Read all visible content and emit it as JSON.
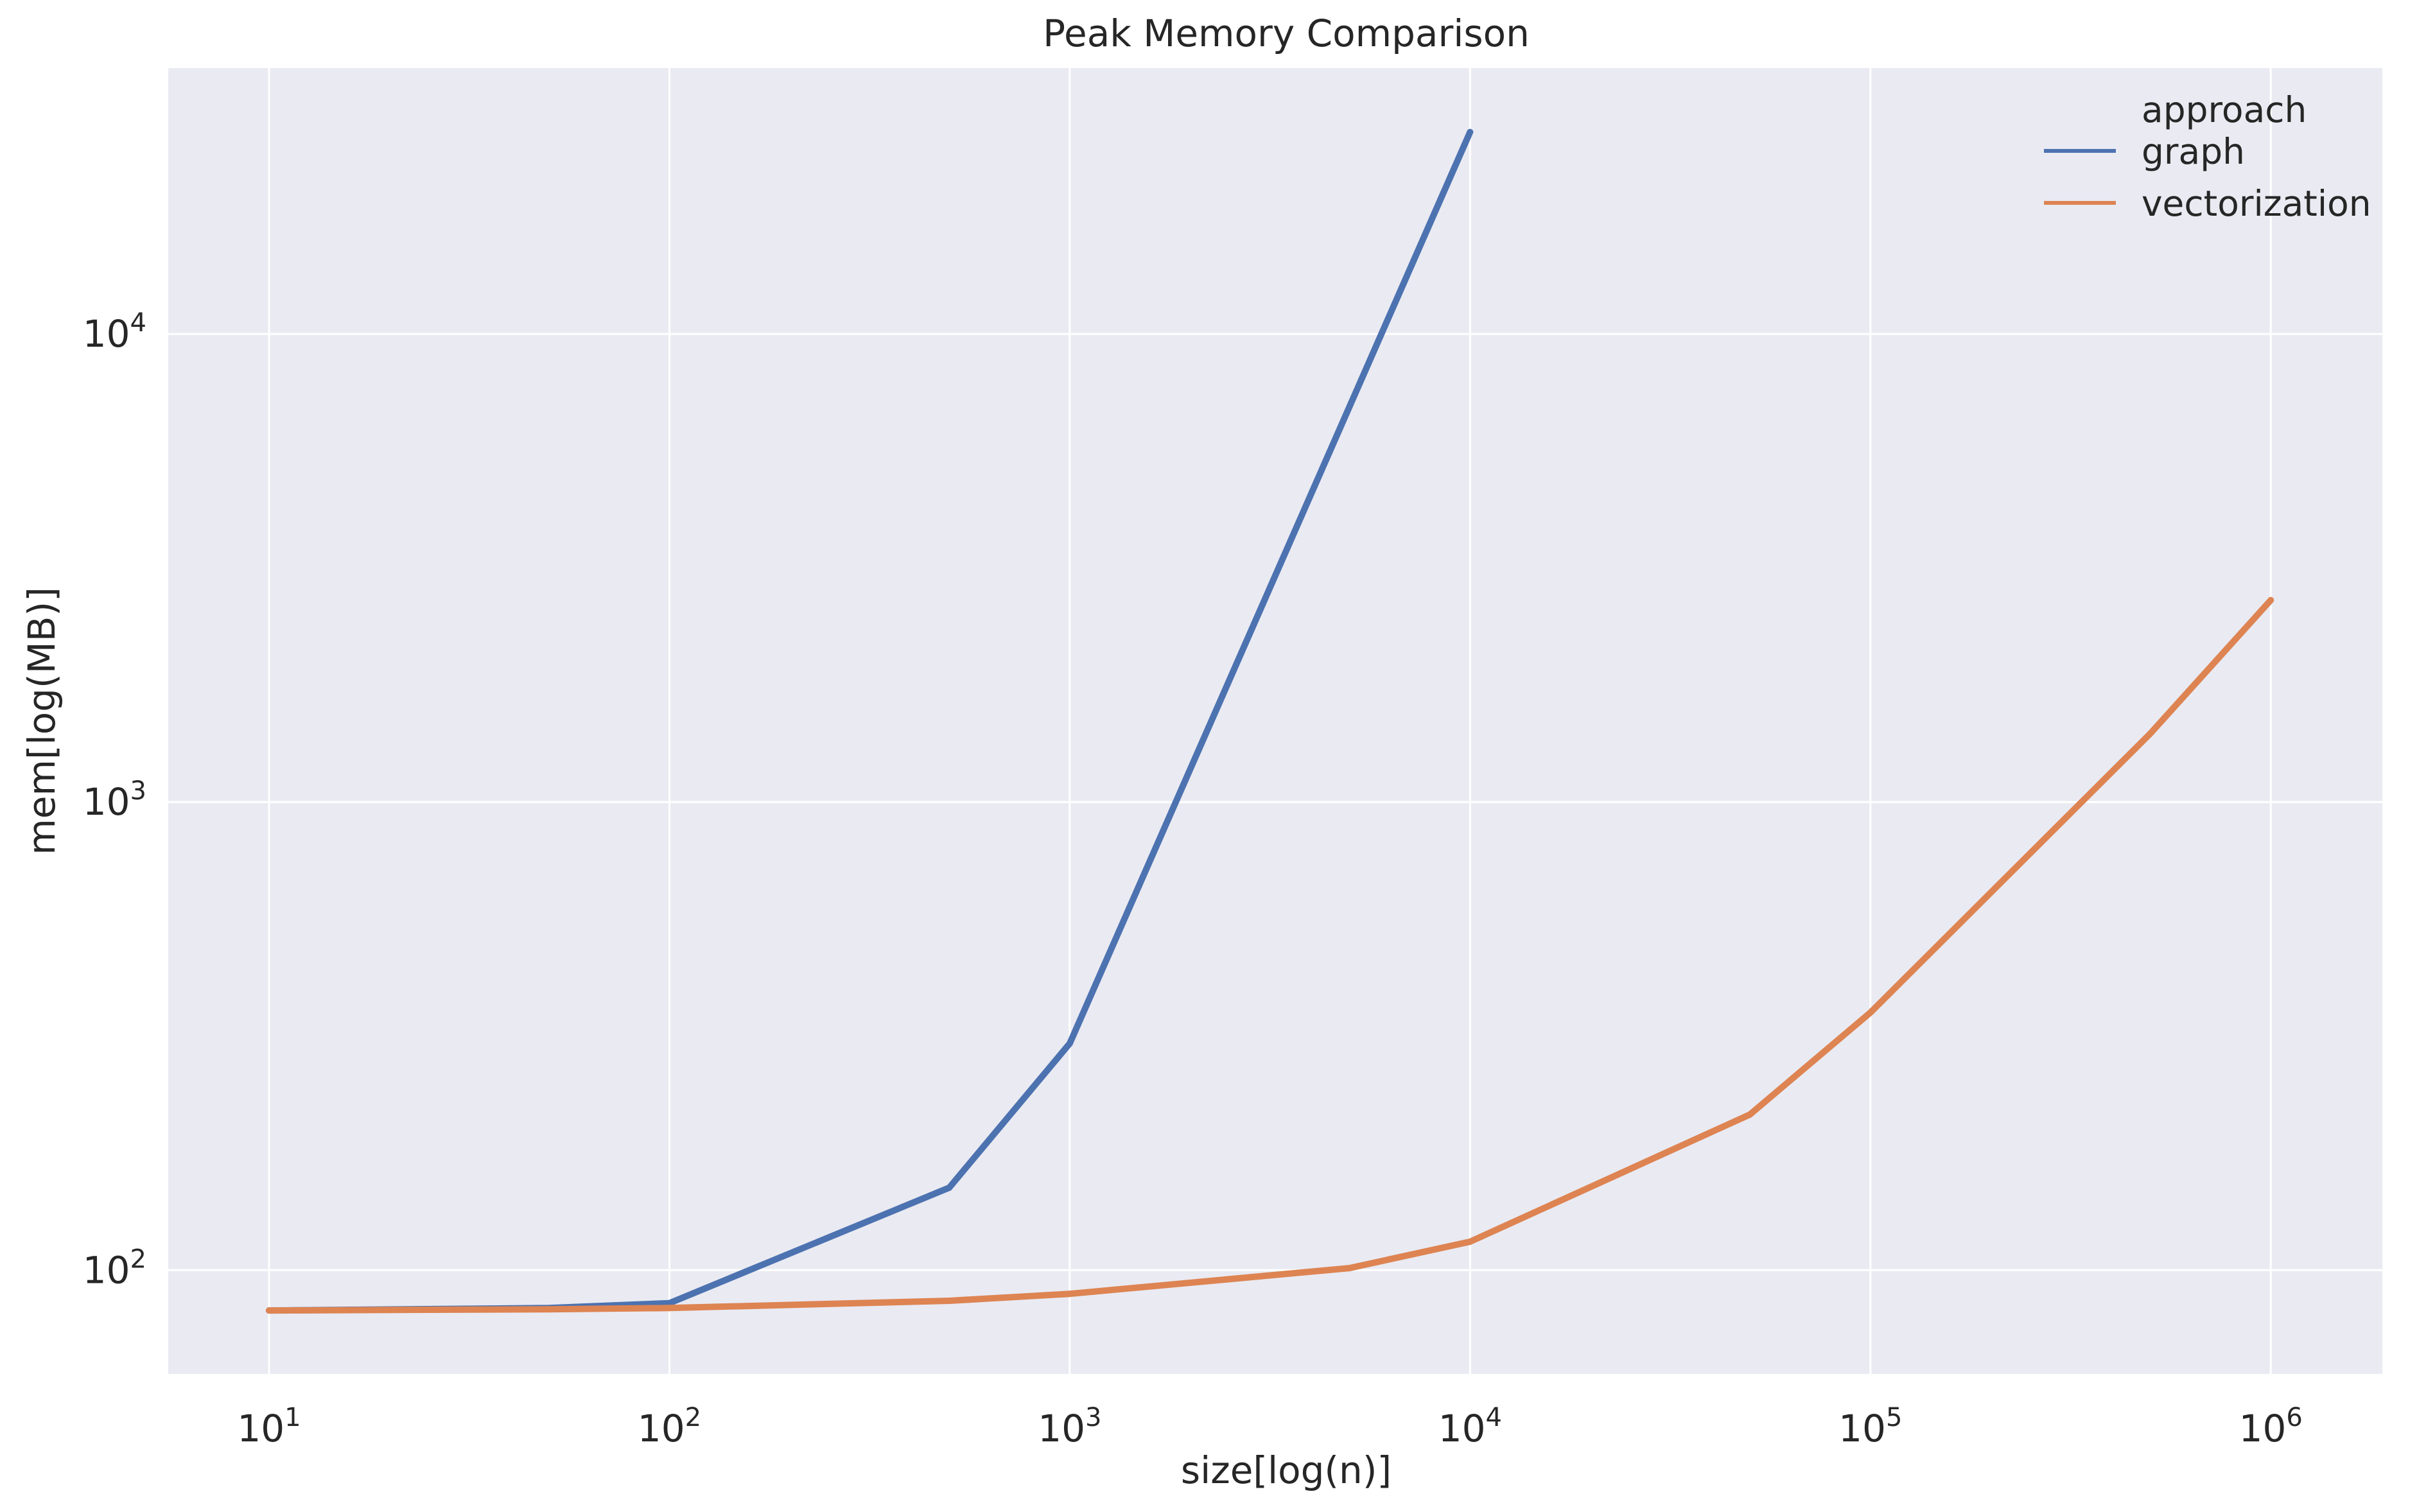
{
  "chart_data": {
    "type": "line",
    "title": "Peak Memory Comparison",
    "xlabel": "size[log(n)]",
    "ylabel": "mem[log(MB)]",
    "x_scale": "log",
    "y_scale": "log",
    "xlim": [
      5.6,
      1900000
    ],
    "ylim": [
      60,
      37000
    ],
    "x_ticks": [
      {
        "value": 10,
        "base": "10",
        "exp": "1"
      },
      {
        "value": 100,
        "base": "10",
        "exp": "2"
      },
      {
        "value": 1000,
        "base": "10",
        "exp": "3"
      },
      {
        "value": 10000,
        "base": "10",
        "exp": "4"
      },
      {
        "value": 100000,
        "base": "10",
        "exp": "5"
      },
      {
        "value": 1000000,
        "base": "10",
        "exp": "6"
      }
    ],
    "y_ticks": [
      {
        "value": 100,
        "base": "10",
        "exp": "2"
      },
      {
        "value": 1000,
        "base": "10",
        "exp": "3"
      },
      {
        "value": 10000,
        "base": "10",
        "exp": "4"
      }
    ],
    "grid": true,
    "legend": {
      "title": "approach",
      "placement": "top-right"
    },
    "series": [
      {
        "name": "graph",
        "color": "#4c72b0",
        "x": [
          10,
          50,
          100,
          500,
          1000,
          5000,
          10000
        ],
        "y": [
          82,
          83,
          85,
          150,
          305,
          7000,
          27000
        ]
      },
      {
        "name": "vectorization",
        "color": "#dd8452",
        "x": [
          10,
          50,
          100,
          500,
          1000,
          5000,
          10000,
          50000,
          100000,
          500000,
          1000000
        ],
        "y": [
          82,
          82.5,
          83,
          86,
          89,
          101,
          115,
          215,
          355,
          1400,
          2700
        ]
      }
    ],
    "colors": {
      "plot_background": "#eaeaf2",
      "grid": "#ffffff",
      "text": "#262626"
    }
  }
}
